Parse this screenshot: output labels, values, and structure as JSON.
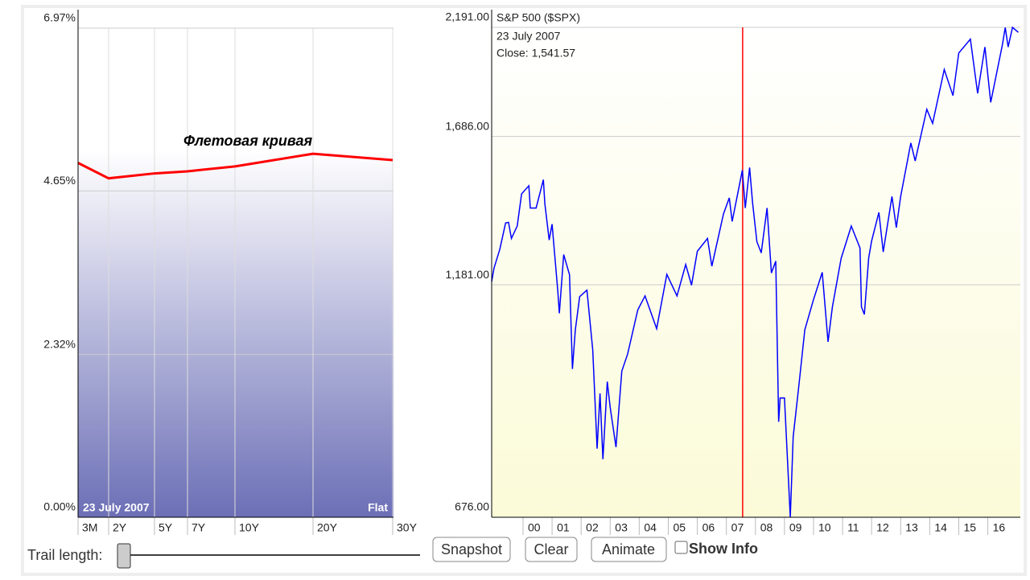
{
  "chart_data": [
    {
      "type": "line",
      "categories": [
        "3M",
        "2Y",
        "5Y",
        "7Y",
        "10Y",
        "20Y",
        "30Y"
      ],
      "values": [
        5.05,
        4.83,
        4.9,
        4.93,
        5.0,
        5.18,
        5.09
      ],
      "color": "#ff0000",
      "ylim": [
        0,
        6.97
      ],
      "yticks": [
        {
          "value": 0,
          "label": "0.00%"
        },
        {
          "value": 2.32,
          "label": "2.32%"
        },
        {
          "value": 4.65,
          "label": "4.65%"
        },
        {
          "value": 6.97,
          "label": "6.97%"
        }
      ],
      "grid": true,
      "annotation": "Флетовая кривая",
      "date_label": "23  July 2007",
      "shape_label": "Flat"
    },
    {
      "type": "line",
      "title": "S&P 500 ($SPX)",
      "date_label": "23  July 2007",
      "close_label": "Close: 1,541.57",
      "x": [
        1998.92,
        1999.0,
        1999.2,
        1999.4,
        1999.5,
        1999.6,
        1999.8,
        1999.95,
        2000.2,
        2000.25,
        2000.45,
        2000.7,
        2000.75,
        2000.9,
        2001.0,
        2001.2,
        2001.25,
        2001.4,
        2001.6,
        2001.7,
        2001.8,
        2001.95,
        2002.2,
        2002.4,
        2002.55,
        2002.65,
        2002.75,
        2002.9,
        2003.0,
        2003.2,
        2003.4,
        2003.6,
        2003.95,
        2004.2,
        2004.6,
        2004.95,
        2005.3,
        2005.6,
        2005.8,
        2006.0,
        2006.35,
        2006.5,
        2006.9,
        2007.1,
        2007.2,
        2007.55,
        2007.65,
        2007.8,
        2007.9,
        2008.05,
        2008.2,
        2008.4,
        2008.55,
        2008.7,
        2008.8,
        2008.85,
        2009.0,
        2009.2,
        2009.3,
        2009.5,
        2009.7,
        2010.0,
        2010.3,
        2010.5,
        2010.65,
        2010.95,
        2011.3,
        2011.6,
        2011.65,
        2011.75,
        2011.9,
        2012.0,
        2012.25,
        2012.4,
        2012.7,
        2012.85,
        2013.0,
        2013.35,
        2013.5,
        2013.9,
        2014.1,
        2014.5,
        2014.8,
        2015.0,
        2015.4,
        2015.65,
        2015.9,
        2016.1,
        2016.5,
        2016.6,
        2016.7,
        2016.85,
        2017.05
      ],
      "values": [
        1190,
        1229,
        1286,
        1370,
        1372,
        1320,
        1360,
        1469,
        1498,
        1420,
        1420,
        1520,
        1436,
        1315,
        1366,
        1160,
        1103,
        1270,
        1210,
        965,
        1060,
        1148,
        1166,
        1010,
        797,
        910,
        777,
        936,
        880,
        800,
        960,
        1000,
        1112,
        1150,
        1063,
        1211,
        1150,
        1240,
        1180,
        1280,
        1320,
        1235,
        1400,
        1455,
        1375,
        1555,
        1420,
        1565,
        1440,
        1310,
        1275,
        1420,
        1215,
        1250,
        850,
        900,
        900,
        676,
        820,
        930,
        1060,
        1140,
        1217,
        1030,
        1120,
        1258,
        1360,
        1290,
        1120,
        1100,
        1260,
        1312,
        1405,
        1278,
        1460,
        1355,
        1460,
        1660,
        1590,
        1800,
        1740,
        1980,
        1860,
        2060,
        2130,
        1870,
        2090,
        1830,
        2100,
        2190,
        2090,
        2191,
        2165
      ],
      "color": "#0000ff",
      "log_scale": true,
      "ylim": [
        676,
        2191
      ],
      "yticks": [
        {
          "value": 676,
          "label": "676.00"
        },
        {
          "value": 1181,
          "label": "1,181.00"
        },
        {
          "value": 1686,
          "label": "1,686.00"
        },
        {
          "value": 2191,
          "label": "2,191.00"
        }
      ],
      "xlim": [
        1998.92,
        2017.12
      ],
      "xticks": [
        {
          "value": 2000,
          "label": "00"
        },
        {
          "value": 2001,
          "label": "01"
        },
        {
          "value": 2002,
          "label": "02"
        },
        {
          "value": 2003,
          "label": "03"
        },
        {
          "value": 2004,
          "label": "04"
        },
        {
          "value": 2005,
          "label": "05"
        },
        {
          "value": 2006,
          "label": "06"
        },
        {
          "value": 2007,
          "label": "07"
        },
        {
          "value": 2008,
          "label": "08"
        },
        {
          "value": 2009,
          "label": "09"
        },
        {
          "value": 2010,
          "label": "10"
        },
        {
          "value": 2011,
          "label": "11"
        },
        {
          "value": 2012,
          "label": "12"
        },
        {
          "value": 2013,
          "label": "13"
        },
        {
          "value": 2014,
          "label": "14"
        },
        {
          "value": 2015,
          "label": "15"
        },
        {
          "value": 2016,
          "label": "16"
        }
      ],
      "grid": true,
      "marker_x": 2007.56,
      "marker_color": "#ff0000"
    }
  ],
  "controls": {
    "trail_label": "Trail length:",
    "buttons": [
      "Snapshot",
      "Clear",
      "Animate"
    ],
    "checkbox_label": "Show Info"
  }
}
